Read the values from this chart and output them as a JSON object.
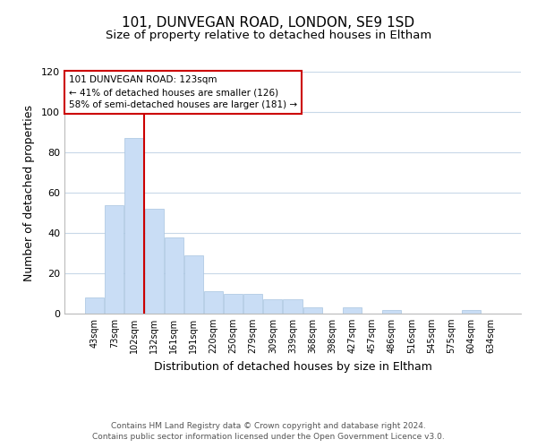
{
  "title": "101, DUNVEGAN ROAD, LONDON, SE9 1SD",
  "subtitle": "Size of property relative to detached houses in Eltham",
  "xlabel": "Distribution of detached houses by size in Eltham",
  "ylabel": "Number of detached properties",
  "bar_labels": [
    "43sqm",
    "73sqm",
    "102sqm",
    "132sqm",
    "161sqm",
    "191sqm",
    "220sqm",
    "250sqm",
    "279sqm",
    "309sqm",
    "339sqm",
    "368sqm",
    "398sqm",
    "427sqm",
    "457sqm",
    "486sqm",
    "516sqm",
    "545sqm",
    "575sqm",
    "604sqm",
    "634sqm"
  ],
  "bar_values": [
    8,
    54,
    87,
    52,
    38,
    29,
    11,
    10,
    10,
    7,
    7,
    3,
    0,
    3,
    0,
    2,
    0,
    0,
    0,
    2,
    0
  ],
  "bar_color": "#c9ddf5",
  "bar_edge_color": "#a8c4e0",
  "property_line_x": 2.5,
  "property_line_color": "#cc0000",
  "ylim": [
    0,
    120
  ],
  "yticks": [
    0,
    20,
    40,
    60,
    80,
    100,
    120
  ],
  "annotation_title": "101 DUNVEGAN ROAD: 123sqm",
  "annotation_line1": "← 41% of detached houses are smaller (126)",
  "annotation_line2": "58% of semi-detached houses are larger (181) →",
  "annotation_box_color": "#ffffff",
  "annotation_box_edge": "#cc0000",
  "footer_line1": "Contains HM Land Registry data © Crown copyright and database right 2024.",
  "footer_line2": "Contains public sector information licensed under the Open Government Licence v3.0.",
  "background_color": "#ffffff",
  "grid_color": "#c8d8e8",
  "title_fontsize": 11,
  "subtitle_fontsize": 9.5,
  "axis_label_fontsize": 9,
  "tick_fontsize": 7,
  "footer_fontsize": 6.5,
  "annotation_fontsize": 7.5
}
